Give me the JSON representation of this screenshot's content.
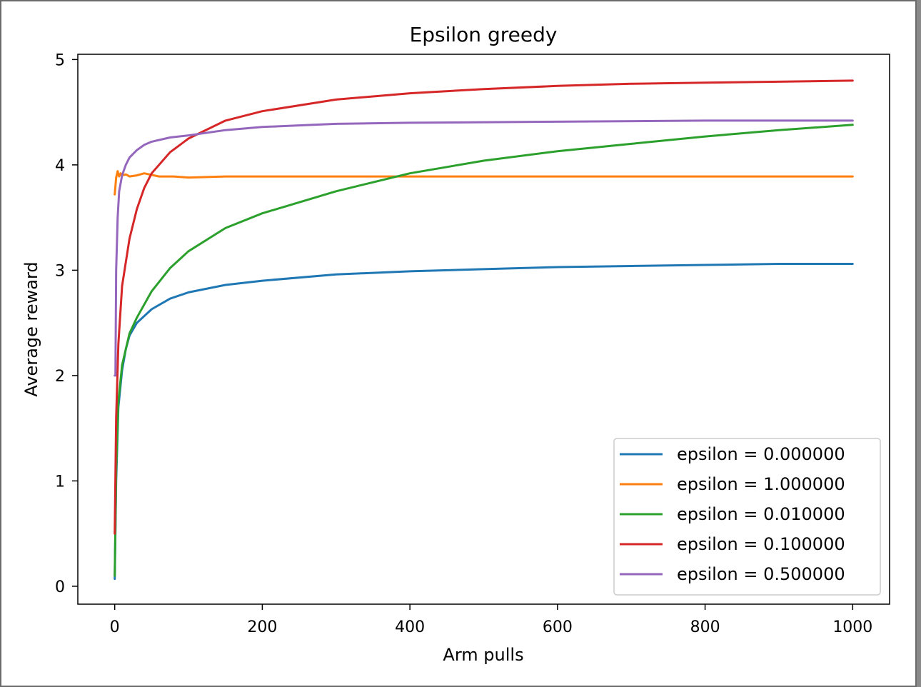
{
  "chart_data": {
    "type": "line",
    "title": "Epsilon greedy",
    "xlabel": "Arm pulls",
    "ylabel": "Average reward",
    "xlim": [
      -50,
      1050
    ],
    "ylim": [
      -0.17,
      5.05
    ],
    "xticks": [
      0,
      200,
      400,
      600,
      800,
      1000
    ],
    "yticks": [
      0,
      1,
      2,
      3,
      4,
      5
    ],
    "grid": false,
    "legend_position": "lower-right",
    "series": [
      {
        "name": "epsilon = 0.000000",
        "color": "#1f77b4",
        "points": [
          [
            0,
            0.07
          ],
          [
            2,
            1.0
          ],
          [
            5,
            1.7
          ],
          [
            10,
            2.05
          ],
          [
            15,
            2.25
          ],
          [
            20,
            2.38
          ],
          [
            30,
            2.5
          ],
          [
            50,
            2.63
          ],
          [
            75,
            2.73
          ],
          [
            100,
            2.79
          ],
          [
            150,
            2.86
          ],
          [
            200,
            2.9
          ],
          [
            300,
            2.96
          ],
          [
            400,
            2.99
          ],
          [
            500,
            3.01
          ],
          [
            600,
            3.03
          ],
          [
            700,
            3.04
          ],
          [
            800,
            3.05
          ],
          [
            900,
            3.06
          ],
          [
            1000,
            3.06
          ]
        ]
      },
      {
        "name": "epsilon = 1.000000",
        "color": "#ff7f0e",
        "points": [
          [
            0,
            3.72
          ],
          [
            2,
            3.88
          ],
          [
            4,
            3.94
          ],
          [
            6,
            3.89
          ],
          [
            8,
            3.92
          ],
          [
            10,
            3.9
          ],
          [
            15,
            3.91
          ],
          [
            20,
            3.89
          ],
          [
            30,
            3.9
          ],
          [
            40,
            3.92
          ],
          [
            60,
            3.89
          ],
          [
            80,
            3.89
          ],
          [
            100,
            3.88
          ],
          [
            150,
            3.89
          ],
          [
            200,
            3.89
          ],
          [
            300,
            3.89
          ],
          [
            400,
            3.89
          ],
          [
            600,
            3.89
          ],
          [
            800,
            3.89
          ],
          [
            1000,
            3.89
          ]
        ]
      },
      {
        "name": "epsilon = 0.010000",
        "color": "#2ca02c",
        "points": [
          [
            0,
            0.1
          ],
          [
            2,
            1.1
          ],
          [
            5,
            1.75
          ],
          [
            10,
            2.1
          ],
          [
            20,
            2.4
          ],
          [
            30,
            2.55
          ],
          [
            50,
            2.8
          ],
          [
            75,
            3.02
          ],
          [
            100,
            3.18
          ],
          [
            150,
            3.4
          ],
          [
            200,
            3.54
          ],
          [
            300,
            3.75
          ],
          [
            400,
            3.92
          ],
          [
            500,
            4.04
          ],
          [
            600,
            4.13
          ],
          [
            700,
            4.2
          ],
          [
            800,
            4.27
          ],
          [
            900,
            4.33
          ],
          [
            1000,
            4.38
          ]
        ]
      },
      {
        "name": "epsilon = 0.100000",
        "color": "#d62728",
        "points": [
          [
            0,
            0.5
          ],
          [
            2,
            1.6
          ],
          [
            5,
            2.3
          ],
          [
            10,
            2.85
          ],
          [
            20,
            3.3
          ],
          [
            30,
            3.58
          ],
          [
            40,
            3.78
          ],
          [
            50,
            3.92
          ],
          [
            75,
            4.12
          ],
          [
            100,
            4.25
          ],
          [
            150,
            4.42
          ],
          [
            200,
            4.51
          ],
          [
            300,
            4.62
          ],
          [
            400,
            4.68
          ],
          [
            500,
            4.72
          ],
          [
            600,
            4.75
          ],
          [
            700,
            4.77
          ],
          [
            800,
            4.78
          ],
          [
            900,
            4.79
          ],
          [
            1000,
            4.8
          ]
        ]
      },
      {
        "name": "epsilon = 0.500000",
        "color": "#9467bd",
        "points": [
          [
            0,
            2.0
          ],
          [
            1,
            2.0
          ],
          [
            2,
            3.0
          ],
          [
            4,
            3.5
          ],
          [
            6,
            3.75
          ],
          [
            10,
            3.9
          ],
          [
            15,
            4.0
          ],
          [
            20,
            4.07
          ],
          [
            30,
            4.14
          ],
          [
            40,
            4.19
          ],
          [
            50,
            4.22
          ],
          [
            75,
            4.26
          ],
          [
            100,
            4.28
          ],
          [
            150,
            4.33
          ],
          [
            200,
            4.36
          ],
          [
            300,
            4.39
          ],
          [
            400,
            4.4
          ],
          [
            600,
            4.41
          ],
          [
            800,
            4.42
          ],
          [
            1000,
            4.42
          ]
        ]
      }
    ]
  }
}
